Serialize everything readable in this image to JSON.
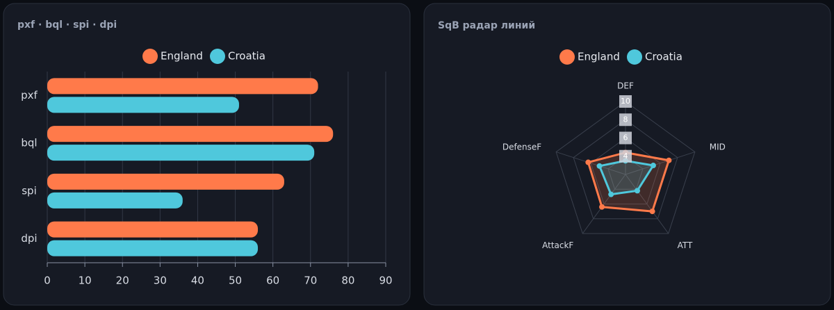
{
  "chart_data": [
    {
      "type": "bar",
      "orientation": "horizontal",
      "title": "pxf · bql · spi · dpi",
      "categories": [
        "pxf",
        "bql",
        "spi",
        "dpi"
      ],
      "series": [
        {
          "name": "England",
          "color": "#ff7a4a",
          "values": [
            72,
            76,
            63,
            56
          ]
        },
        {
          "name": "Croatia",
          "color": "#4fc8dc",
          "values": [
            51,
            71,
            36,
            56
          ]
        }
      ],
      "xlim": [
        0,
        90
      ],
      "xticks": [
        0,
        10,
        20,
        30,
        40,
        50,
        60,
        70,
        80,
        90
      ],
      "grid": true
    },
    {
      "type": "radar",
      "title": "SqB радар линий",
      "categories": [
        "DEF",
        "MID",
        "ATT",
        "AttackF",
        "DefenseF"
      ],
      "series": [
        {
          "name": "England",
          "color": "#ff7a4a",
          "values": [
            4.4,
            7.0,
            7.0,
            6.4,
            6.3
          ]
        },
        {
          "name": "Croatia",
          "color": "#4fc8dc",
          "values": [
            3.5,
            5.2,
            4.2,
            4.7,
            5.0
          ]
        }
      ],
      "rlim": [
        2,
        10
      ],
      "rticks": [
        4,
        6,
        8,
        10
      ],
      "grid": true
    }
  ]
}
